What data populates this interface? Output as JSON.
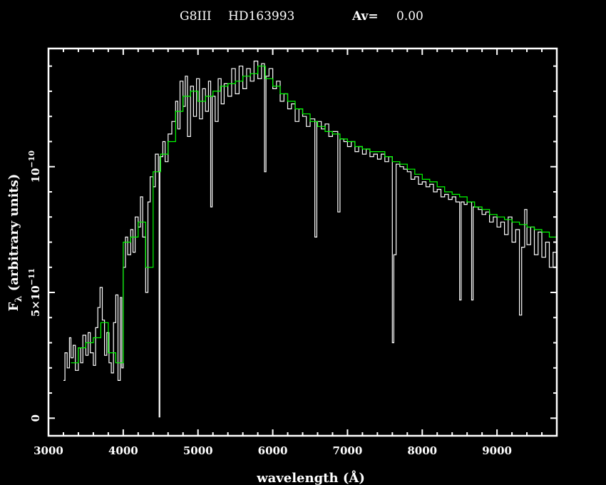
{
  "title": {
    "spectral_type": "G8III",
    "star": "HD163993",
    "av_label": "Av=",
    "av_value": "0.00"
  },
  "chart_data": {
    "type": "line",
    "xlabel": "wavelength (Å)",
    "ylabel_main": "F",
    "ylabel_sub": "λ",
    "ylabel_rest": " (arbitrary units)",
    "xlim": [
      3000,
      9800
    ],
    "ylim": [
      -7e-12,
      1.47e-10
    ],
    "x_major_ticks": [
      3000,
      4000,
      5000,
      6000,
      7000,
      8000,
      9000
    ],
    "x_tick_labels": [
      "3000",
      "4000",
      "5000",
      "6000",
      "7000",
      "8000",
      "9000"
    ],
    "x_minor_step": 200,
    "y_major_ticks": [
      0,
      5e-11,
      1e-10
    ],
    "y_tick_labels": [
      {
        "base": "0",
        "exp": ""
      },
      {
        "base": "5×10",
        "exp": "−11"
      },
      {
        "base": "10",
        "exp": "−10"
      }
    ],
    "y_minor_step": 1e-11,
    "grid": false,
    "colors": {
      "background": "#000000",
      "axes": "#ffffff",
      "observed": "#ffffff",
      "model": "#00ff00"
    },
    "series": [
      {
        "role": "observed",
        "color": "#ffffff",
        "points": [
          [
            3200,
            1.5e-11
          ],
          [
            3220,
            2.6e-11
          ],
          [
            3250,
            2e-11
          ],
          [
            3280,
            3.2e-11
          ],
          [
            3300,
            2.4e-11
          ],
          [
            3330,
            2.9e-11
          ],
          [
            3360,
            1.9e-11
          ],
          [
            3400,
            2.8e-11
          ],
          [
            3430,
            2.2e-11
          ],
          [
            3460,
            3.3e-11
          ],
          [
            3500,
            2.5e-11
          ],
          [
            3530,
            3.4e-11
          ],
          [
            3560,
            2.6e-11
          ],
          [
            3600,
            2.1e-11
          ],
          [
            3630,
            3.6e-11
          ],
          [
            3660,
            4.4e-11
          ],
          [
            3690,
            5.2e-11
          ],
          [
            3720,
            3.9e-11
          ],
          [
            3750,
            2.5e-11
          ],
          [
            3780,
            3.4e-11
          ],
          [
            3810,
            2.2e-11
          ],
          [
            3840,
            1.8e-11
          ],
          [
            3870,
            3.8e-11
          ],
          [
            3900,
            4.9e-11
          ],
          [
            3930,
            1.5e-11
          ],
          [
            3960,
            4.8e-11
          ],
          [
            3980,
            2e-11
          ],
          [
            4000,
            6e-11
          ],
          [
            4030,
            7.2e-11
          ],
          [
            4060,
            6.5e-11
          ],
          [
            4100,
            7.5e-11
          ],
          [
            4130,
            6.6e-11
          ],
          [
            4160,
            8e-11
          ],
          [
            4200,
            7.6e-11
          ],
          [
            4230,
            8.8e-11
          ],
          [
            4260,
            7.2e-11
          ],
          [
            4300,
            5e-11
          ],
          [
            4330,
            8.6e-11
          ],
          [
            4360,
            9.6e-11
          ],
          [
            4400,
            9.2e-11
          ],
          [
            4430,
            1.05e-10
          ],
          [
            4470,
            9.8e-11
          ],
          [
            4480,
            5e-13
          ],
          [
            4490,
            1.04e-10
          ],
          [
            4530,
            1.1e-10
          ],
          [
            4560,
            1.02e-10
          ],
          [
            4600,
            1.13e-10
          ],
          [
            4650,
            1.18e-10
          ],
          [
            4700,
            1.26e-10
          ],
          [
            4730,
            1.15e-10
          ],
          [
            4760,
            1.34e-10
          ],
          [
            4800,
            1.24e-10
          ],
          [
            4830,
            1.36e-10
          ],
          [
            4860,
            1.12e-10
          ],
          [
            4900,
            1.32e-10
          ],
          [
            4940,
            1.2e-10
          ],
          [
            4980,
            1.35e-10
          ],
          [
            5020,
            1.19e-10
          ],
          [
            5060,
            1.31e-10
          ],
          [
            5100,
            1.22e-10
          ],
          [
            5140,
            1.34e-10
          ],
          [
            5170,
            8.4e-11
          ],
          [
            5190,
            1.28e-10
          ],
          [
            5230,
            1.18e-10
          ],
          [
            5270,
            1.35e-10
          ],
          [
            5310,
            1.25e-10
          ],
          [
            5350,
            1.33e-10
          ],
          [
            5400,
            1.28e-10
          ],
          [
            5450,
            1.39e-10
          ],
          [
            5500,
            1.29e-10
          ],
          [
            5550,
            1.4e-10
          ],
          [
            5600,
            1.31e-10
          ],
          [
            5650,
            1.39e-10
          ],
          [
            5700,
            1.34e-10
          ],
          [
            5750,
            1.42e-10
          ],
          [
            5800,
            1.35e-10
          ],
          [
            5850,
            1.41e-10
          ],
          [
            5890,
            9.8e-11
          ],
          [
            5910,
            1.36e-10
          ],
          [
            5950,
            1.39e-10
          ],
          [
            6000,
            1.31e-10
          ],
          [
            6050,
            1.34e-10
          ],
          [
            6100,
            1.26e-10
          ],
          [
            6150,
            1.29e-10
          ],
          [
            6200,
            1.23e-10
          ],
          [
            6250,
            1.25e-10
          ],
          [
            6300,
            1.18e-10
          ],
          [
            6350,
            1.23e-10
          ],
          [
            6400,
            1.2e-10
          ],
          [
            6450,
            1.16e-10
          ],
          [
            6500,
            1.19e-10
          ],
          [
            6563,
            7.2e-11
          ],
          [
            6590,
            1.18e-10
          ],
          [
            6650,
            1.15e-10
          ],
          [
            6700,
            1.17e-10
          ],
          [
            6750,
            1.12e-10
          ],
          [
            6800,
            1.14e-10
          ],
          [
            6870,
            8.2e-11
          ],
          [
            6900,
            1.11e-10
          ],
          [
            6950,
            1.1e-10
          ],
          [
            7000,
            1.08e-10
          ],
          [
            7050,
            1.1e-10
          ],
          [
            7100,
            1.06e-10
          ],
          [
            7150,
            1.08e-10
          ],
          [
            7200,
            1.05e-10
          ],
          [
            7250,
            1.07e-10
          ],
          [
            7300,
            1.04e-10
          ],
          [
            7350,
            1.05e-10
          ],
          [
            7400,
            1.03e-10
          ],
          [
            7450,
            1.05e-10
          ],
          [
            7500,
            1.02e-10
          ],
          [
            7550,
            1.04e-10
          ],
          [
            7600,
            3e-11
          ],
          [
            7620,
            6.5e-11
          ],
          [
            7650,
            1.01e-10
          ],
          [
            7700,
            1e-10
          ],
          [
            7750,
            9.9e-11
          ],
          [
            7800,
            9.8e-11
          ],
          [
            7850,
            9.5e-11
          ],
          [
            7900,
            9.6e-11
          ],
          [
            7950,
            9.3e-11
          ],
          [
            8000,
            9.4e-11
          ],
          [
            8050,
            9.2e-11
          ],
          [
            8100,
            9.3e-11
          ],
          [
            8150,
            9e-11
          ],
          [
            8200,
            9.1e-11
          ],
          [
            8250,
            8.8e-11
          ],
          [
            8300,
            8.9e-11
          ],
          [
            8350,
            8.7e-11
          ],
          [
            8400,
            8.8e-11
          ],
          [
            8450,
            8.6e-11
          ],
          [
            8500,
            4.7e-11
          ],
          [
            8520,
            8.6e-11
          ],
          [
            8560,
            8.5e-11
          ],
          [
            8600,
            8.6e-11
          ],
          [
            8660,
            4.7e-11
          ],
          [
            8680,
            8.4e-11
          ],
          [
            8750,
            8.3e-11
          ],
          [
            8800,
            8.1e-11
          ],
          [
            8850,
            8.2e-11
          ],
          [
            8900,
            7.8e-11
          ],
          [
            8950,
            8e-11
          ],
          [
            9000,
            7.6e-11
          ],
          [
            9050,
            7.8e-11
          ],
          [
            9100,
            7.3e-11
          ],
          [
            9150,
            8e-11
          ],
          [
            9200,
            7e-11
          ],
          [
            9250,
            7.5e-11
          ],
          [
            9300,
            4.1e-11
          ],
          [
            9330,
            6.8e-11
          ],
          [
            9370,
            8.3e-11
          ],
          [
            9400,
            6.9e-11
          ],
          [
            9450,
            7.6e-11
          ],
          [
            9500,
            6.5e-11
          ],
          [
            9550,
            7.4e-11
          ],
          [
            9600,
            6.4e-11
          ],
          [
            9650,
            7e-11
          ],
          [
            9700,
            6e-11
          ],
          [
            9750,
            6.6e-11
          ],
          [
            9800,
            5.9e-11
          ]
        ]
      },
      {
        "role": "model",
        "color": "#00ff00",
        "points": [
          [
            3300,
            2.2e-11
          ],
          [
            3400,
            2.8e-11
          ],
          [
            3500,
            3e-11
          ],
          [
            3600,
            3.2e-11
          ],
          [
            3700,
            3.8e-11
          ],
          [
            3800,
            2.6e-11
          ],
          [
            3900,
            2.2e-11
          ],
          [
            4000,
            7e-11
          ],
          [
            4100,
            7.2e-11
          ],
          [
            4200,
            7.8e-11
          ],
          [
            4300,
            6e-11
          ],
          [
            4400,
            9.8e-11
          ],
          [
            4500,
            1.05e-10
          ],
          [
            4600,
            1.1e-10
          ],
          [
            4700,
            1.22e-10
          ],
          [
            4800,
            1.28e-10
          ],
          [
            4900,
            1.3e-10
          ],
          [
            5000,
            1.26e-10
          ],
          [
            5100,
            1.28e-10
          ],
          [
            5200,
            1.3e-10
          ],
          [
            5300,
            1.32e-10
          ],
          [
            5400,
            1.33e-10
          ],
          [
            5500,
            1.34e-10
          ],
          [
            5600,
            1.36e-10
          ],
          [
            5700,
            1.37e-10
          ],
          [
            5800,
            1.4e-10
          ],
          [
            5900,
            1.35e-10
          ],
          [
            6000,
            1.32e-10
          ],
          [
            6100,
            1.29e-10
          ],
          [
            6200,
            1.26e-10
          ],
          [
            6300,
            1.23e-10
          ],
          [
            6400,
            1.21e-10
          ],
          [
            6500,
            1.18e-10
          ],
          [
            6600,
            1.16e-10
          ],
          [
            6700,
            1.14e-10
          ],
          [
            6800,
            1.13e-10
          ],
          [
            6900,
            1.11e-10
          ],
          [
            7000,
            1.1e-10
          ],
          [
            7100,
            1.08e-10
          ],
          [
            7200,
            1.07e-10
          ],
          [
            7300,
            1.06e-10
          ],
          [
            7400,
            1.06e-10
          ],
          [
            7500,
            1.04e-10
          ],
          [
            7600,
            1.02e-10
          ],
          [
            7700,
            1.01e-10
          ],
          [
            7800,
            9.9e-11
          ],
          [
            7900,
            9.7e-11
          ],
          [
            8000,
            9.5e-11
          ],
          [
            8100,
            9.4e-11
          ],
          [
            8200,
            9.2e-11
          ],
          [
            8300,
            9e-11
          ],
          [
            8400,
            8.9e-11
          ],
          [
            8500,
            8.8e-11
          ],
          [
            8600,
            8.6e-11
          ],
          [
            8700,
            8.4e-11
          ],
          [
            8800,
            8.3e-11
          ],
          [
            8900,
            8.1e-11
          ],
          [
            9000,
            8e-11
          ],
          [
            9100,
            7.9e-11
          ],
          [
            9200,
            7.8e-11
          ],
          [
            9300,
            7.7e-11
          ],
          [
            9400,
            7.6e-11
          ],
          [
            9500,
            7.5e-11
          ],
          [
            9600,
            7.4e-11
          ],
          [
            9700,
            7.2e-11
          ],
          [
            9800,
            7e-11
          ]
        ]
      }
    ]
  }
}
